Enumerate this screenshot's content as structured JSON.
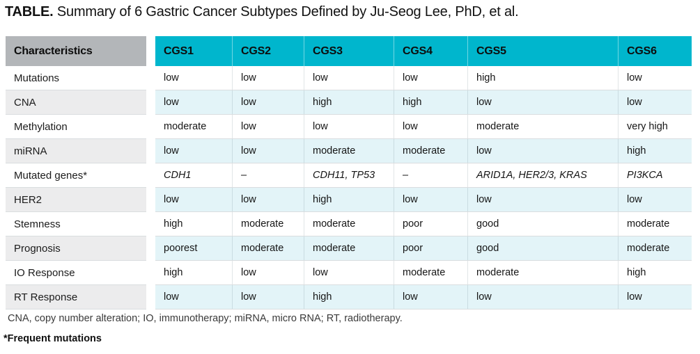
{
  "title": {
    "label": "TABLE.",
    "text": " Summary of 6 Gastric Cancer Subtypes Defined by Ju-Seog Lee, PhD, et al."
  },
  "table": {
    "header": {
      "characteristics": "Characteristics",
      "columns": [
        "CGS1",
        "CGS2",
        "CGS3",
        "CGS4",
        "CGS5",
        "CGS6"
      ]
    },
    "rows": [
      {
        "label": "Mutations",
        "italic": false,
        "values": [
          "low",
          "low",
          "low",
          "low",
          "high",
          "low"
        ]
      },
      {
        "label": "CNA",
        "italic": false,
        "values": [
          "low",
          "low",
          "high",
          "high",
          "low",
          "low"
        ]
      },
      {
        "label": "Methylation",
        "italic": false,
        "values": [
          "moderate",
          "low",
          "low",
          "low",
          "moderate",
          "very high"
        ]
      },
      {
        "label": "miRNA",
        "italic": false,
        "values": [
          "low",
          "low",
          "moderate",
          "moderate",
          "low",
          "high"
        ]
      },
      {
        "label": "Mutated genes*",
        "italic": true,
        "values": [
          "CDH1",
          "–",
          "CDH11, TP53",
          "–",
          "ARID1A, HER2/3, KRAS",
          "PI3KCA"
        ]
      },
      {
        "label": "HER2",
        "italic": false,
        "values": [
          "low",
          "low",
          "high",
          "low",
          "low",
          "low"
        ]
      },
      {
        "label": "Stemness",
        "italic": false,
        "values": [
          "high",
          "moderate",
          "moderate",
          "poor",
          "good",
          "moderate"
        ]
      },
      {
        "label": "Prognosis",
        "italic": false,
        "values": [
          "poorest",
          "moderate",
          "moderate",
          "poor",
          "good",
          "moderate"
        ]
      },
      {
        "label": "IO Response",
        "italic": false,
        "values": [
          "high",
          "low",
          "low",
          "moderate",
          "moderate",
          "high"
        ]
      },
      {
        "label": "RT Response",
        "italic": false,
        "values": [
          "low",
          "low",
          "high",
          "low",
          "low",
          "low"
        ]
      }
    ]
  },
  "footnotes": {
    "abbreviations": "CNA, copy number alteration; IO, immunotherapy; miRNA, micro RNA; RT, radiotherapy.",
    "frequent_mutations": "*Frequent mutations"
  },
  "colors": {
    "header_cyan": "#00b6cd",
    "header_gray": "#b3b6b9",
    "row_alt_blue": "#e3f4f8",
    "row_alt_gray": "#ececed",
    "border": "#d9dddf"
  }
}
